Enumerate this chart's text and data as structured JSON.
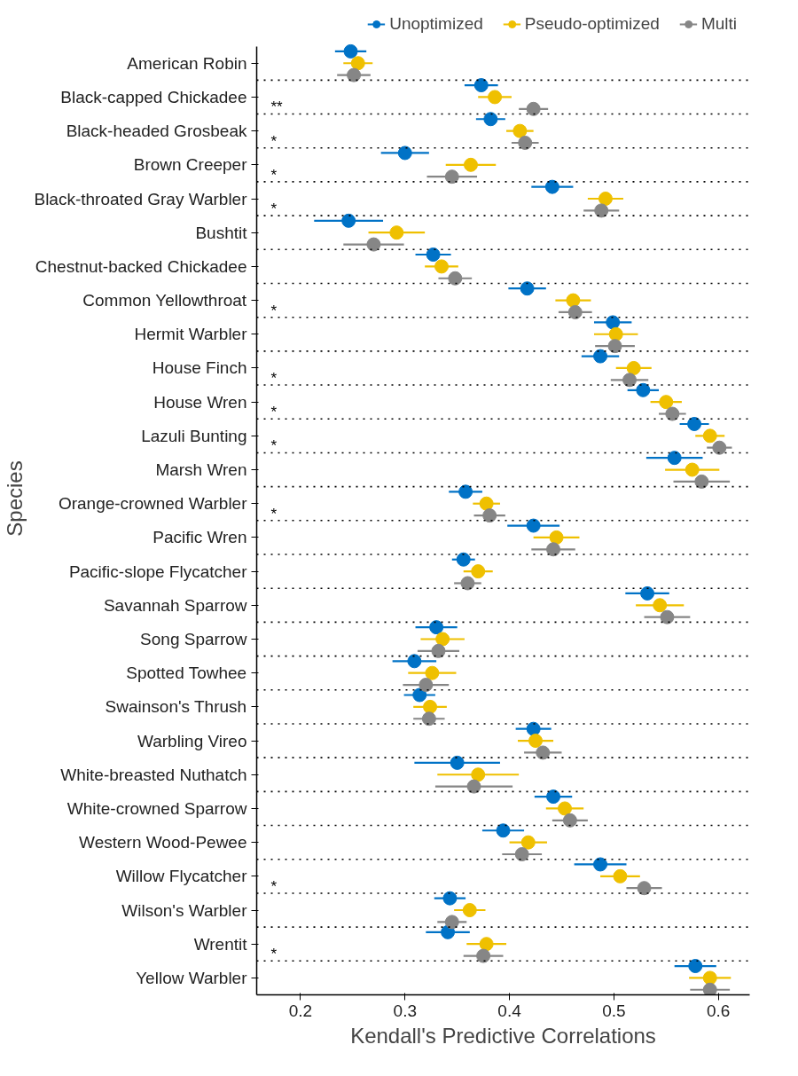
{
  "chart_data": {
    "type": "scatter",
    "orientation": "horizontal",
    "marker": "circle",
    "xlabel": "Kendall's Predictive Correlations",
    "ylabel": "Species",
    "categories": [
      "American Robin",
      "Black-capped Chickadee",
      "Black-headed Grosbeak",
      "Brown Creeper",
      "Black-throated Gray Warbler",
      "Bushtit",
      "Chestnut-backed Chickadee",
      "Common Yellowthroat",
      "Hermit Warbler",
      "House Finch",
      "House Wren",
      "Lazuli Bunting",
      "Marsh Wren",
      "Orange-crowned Warbler",
      "Pacific Wren",
      "Pacific-slope Flycatcher",
      "Savannah Sparrow",
      "Song Sparrow",
      "Spotted Towhee",
      "Swainson's Thrush",
      "Warbling Vireo",
      "White-breasted Nuthatch",
      "White-crowned Sparrow",
      "Western Wood-Pewee",
      "Willow Flycatcher",
      "Wilson's Warbler",
      "Wrentit",
      "Yellow Warbler"
    ],
    "xlim": [
      0.158,
      0.63
    ],
    "xticks": [
      0.2,
      0.3,
      0.4,
      0.5,
      0.6
    ],
    "grid": "y",
    "legend": "top",
    "series": [
      {
        "name": "Unoptimized",
        "color": "#0072c6",
        "values": [
          0.248,
          0.373,
          0.382,
          0.3,
          0.441,
          0.246,
          0.327,
          0.417,
          0.499,
          0.487,
          0.528,
          0.577,
          0.558,
          0.358,
          0.423,
          0.356,
          0.532,
          0.33,
          0.309,
          0.314,
          0.423,
          0.35,
          0.442,
          0.394,
          0.487,
          0.343,
          0.341,
          0.578
        ],
        "errors": [
          0.015,
          0.016,
          0.014,
          0.023,
          0.02,
          0.033,
          0.017,
          0.018,
          0.018,
          0.018,
          0.015,
          0.014,
          0.027,
          0.016,
          0.025,
          0.011,
          0.021,
          0.02,
          0.021,
          0.015,
          0.017,
          0.041,
          0.018,
          0.02,
          0.025,
          0.015,
          0.021,
          0.02
        ]
      },
      {
        "name": "Pseudo-optimized",
        "color": "#efc000",
        "values": [
          0.255,
          0.386,
          0.41,
          0.363,
          0.492,
          0.292,
          0.335,
          0.461,
          0.502,
          0.519,
          0.55,
          0.592,
          0.575,
          0.378,
          0.445,
          0.37,
          0.544,
          0.336,
          0.326,
          0.324,
          0.425,
          0.37,
          0.453,
          0.418,
          0.506,
          0.362,
          0.378,
          0.592
        ],
        "errors": [
          0.014,
          0.016,
          0.013,
          0.024,
          0.017,
          0.027,
          0.016,
          0.017,
          0.021,
          0.017,
          0.015,
          0.014,
          0.026,
          0.013,
          0.022,
          0.014,
          0.023,
          0.021,
          0.023,
          0.016,
          0.017,
          0.039,
          0.018,
          0.018,
          0.019,
          0.015,
          0.019,
          0.02
        ]
      },
      {
        "name": "Multi",
        "color": "#868686",
        "values": [
          0.251,
          0.423,
          0.415,
          0.345,
          0.488,
          0.27,
          0.348,
          0.463,
          0.501,
          0.515,
          0.556,
          0.601,
          0.584,
          0.381,
          0.442,
          0.36,
          0.551,
          0.332,
          0.32,
          0.323,
          0.432,
          0.366,
          0.458,
          0.412,
          0.529,
          0.345,
          0.375,
          0.592
        ],
        "errors": [
          0.016,
          0.014,
          0.013,
          0.024,
          0.017,
          0.029,
          0.016,
          0.016,
          0.019,
          0.018,
          0.013,
          0.012,
          0.027,
          0.015,
          0.021,
          0.013,
          0.022,
          0.02,
          0.022,
          0.015,
          0.018,
          0.037,
          0.017,
          0.019,
          0.017,
          0.014,
          0.019,
          0.019
        ]
      }
    ],
    "annotations": [
      "**",
      "*",
      "*",
      "*",
      "*",
      "*",
      "*",
      "*",
      "*",
      "*",
      "*"
    ]
  }
}
